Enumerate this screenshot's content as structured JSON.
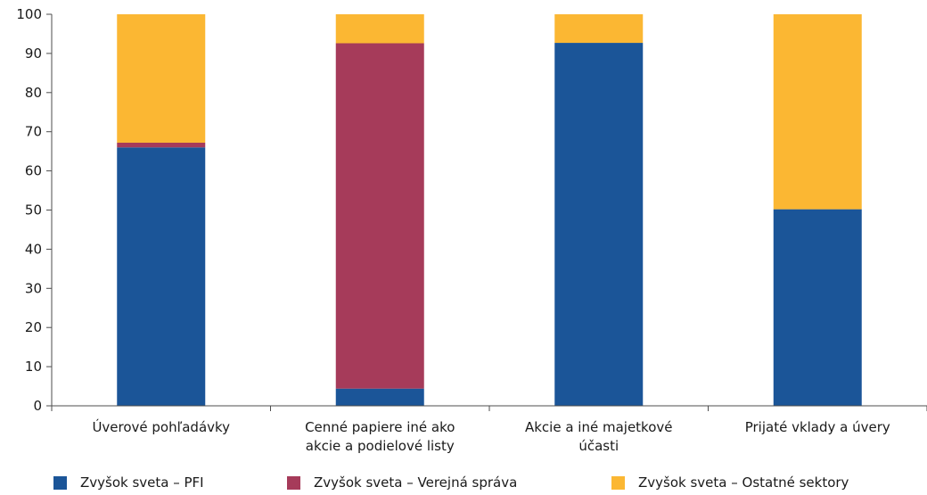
{
  "chart_data": {
    "type": "bar",
    "stacked": true,
    "categories": [
      [
        "Úverové pohľadávky"
      ],
      [
        "Cenné  papiere iné ako",
        "akcie a podielové listy"
      ],
      [
        "Akcie a iné majetkové",
        "účasti"
      ],
      [
        "Prijaté vklady a úvery"
      ]
    ],
    "series": [
      {
        "name": "Zvyšok sveta – PFI",
        "color": "#1b5598",
        "values": [
          66.0,
          4.4,
          92.7,
          50.2
        ]
      },
      {
        "name": "Zvyšok sveta – Verejná správa",
        "color": "#a63b5a",
        "values": [
          1.2,
          88.2,
          0.0,
          0.0
        ]
      },
      {
        "name": "Zvyšok sveta – Ostatné sektory",
        "color": "#fbb733",
        "values": [
          32.8,
          7.4,
          7.3,
          49.8
        ]
      }
    ],
    "ylim": [
      0,
      100
    ],
    "yticks": [
      0,
      10,
      20,
      30,
      40,
      50,
      60,
      70,
      80,
      90,
      100
    ],
    "legend_position": "bottom"
  }
}
